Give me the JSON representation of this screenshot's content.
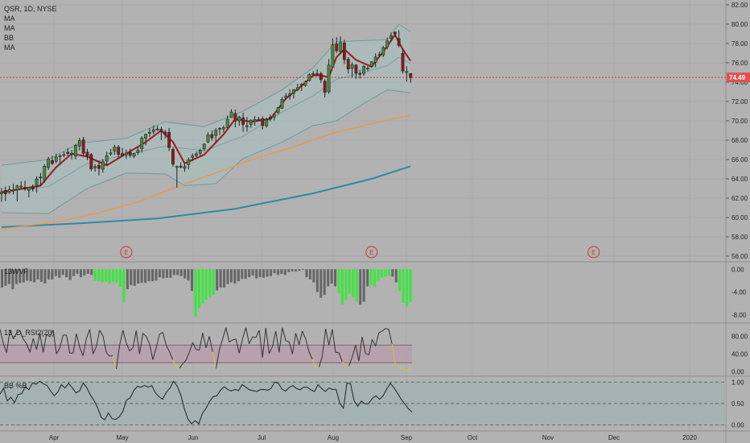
{
  "header": {
    "symbol_line": "QSR, 1D, NYSE",
    "indicator_labels": [
      "MA",
      "MA",
      "BB",
      "MA"
    ]
  },
  "colors": {
    "background": "#b2b2b2",
    "grid": "#a9a9a9",
    "candle_up": "#4a8f3a",
    "candle_down": "#8e1a1a",
    "ma_short": "#9a1d1d",
    "ma_mid": "#e89a4a",
    "ma_long": "#2b8ba6",
    "bb_band": "#6d9c9a",
    "bb_fill": "#a9bcbb",
    "price_line": "#d33a3a",
    "price_badge": "#e05050",
    "wvf_gray": "#666666",
    "wvf_green": "#38e83a",
    "rsi_line": "#333333",
    "rsi_low": "#e0c040",
    "rsi_band": "#b89aaa",
    "bbpct_fill": "#a2b3b2"
  },
  "price_panel": {
    "last_price": "74.49",
    "y_ticks": [
      "82.00",
      "80.00",
      "78.00",
      "76.00",
      "74.00",
      "72.00",
      "70.00",
      "68.00",
      "66.00",
      "64.00",
      "62.00",
      "60.00",
      "58.00",
      "56.00"
    ],
    "earnings_markers": [
      "E",
      "E",
      "E"
    ]
  },
  "panels": [
    {
      "label": "13WVF",
      "y_ticks": [
        "0.00",
        "-4.00",
        "-8.00"
      ]
    },
    {
      "label": "13_D_RSI2(20)",
      "y_ticks": [
        "80.00",
        "40.00",
        "0.00"
      ]
    },
    {
      "label": "BB %B",
      "y_ticks": [
        "1.00",
        "0.50",
        "0.00"
      ]
    }
  ],
  "time_axis": {
    "labels": [
      "Apr",
      "May",
      "Jun",
      "Jul",
      "Aug",
      "Sep",
      "Oct",
      "Nov",
      "Dec",
      "2020"
    ]
  },
  "chart_data": {
    "type": "candlestick",
    "title": "QSR, 1D, NYSE",
    "y_range": [
      55.5,
      82.5
    ],
    "x_range_days": [
      "2019-03-08",
      "2020-02-10"
    ],
    "candles": [
      [
        62.45,
        63.04,
        61.62,
        62.62
      ],
      [
        62.8,
        63.2,
        61.69,
        62.45
      ],
      [
        62.63,
        63.28,
        62.41,
        62.88
      ],
      [
        62.8,
        63.48,
        62.39,
        62.83
      ],
      [
        62.86,
        63.39,
        61.66,
        63.25
      ],
      [
        63.19,
        63.72,
        62.96,
        63.24
      ],
      [
        63.12,
        63.79,
        62.77,
        62.93
      ],
      [
        62.79,
        63.13,
        62.08,
        63.13
      ],
      [
        63.1,
        63.41,
        62.7,
        62.93
      ],
      [
        63.28,
        64.27,
        62.59,
        63.99
      ],
      [
        64.15,
        64.6,
        63.32,
        64.18
      ],
      [
        63.88,
        65.53,
        63.59,
        65.3
      ],
      [
        65.17,
        66.28,
        64.91,
        66.03
      ],
      [
        65.89,
        66.38,
        65.44,
        65.58
      ],
      [
        65.82,
        66.6,
        65.61,
        66.25
      ],
      [
        66.33,
        66.55,
        65.46,
        66.39
      ],
      [
        66.43,
        66.82,
        66.26,
        66.5
      ],
      [
        66.75,
        67.18,
        66.39,
        66.62
      ],
      [
        66.61,
        67.0,
        66.01,
        66.65
      ],
      [
        66.35,
        67.62,
        66.01,
        67.45
      ],
      [
        67.39,
        68.23,
        66.95,
        67.94
      ],
      [
        68.03,
        68.35,
        66.34,
        66.63
      ],
      [
        66.75,
        67.1,
        65.93,
        66.4
      ],
      [
        66.51,
        66.66,
        64.79,
        65.03
      ],
      [
        65.14,
        65.52,
        64.74,
        65.27
      ],
      [
        65.4,
        65.86,
        64.34,
        65.07
      ],
      [
        65.0,
        66.04,
        64.64,
        65.77
      ],
      [
        65.83,
        66.8,
        65.36,
        66.38
      ],
      [
        66.57,
        67.09,
        66.38,
        66.68
      ],
      [
        66.86,
        67.53,
        66.48,
        67.27
      ],
      [
        67.28,
        67.49,
        66.11,
        66.52
      ],
      [
        66.61,
        67.19,
        66.33,
        66.4
      ],
      [
        66.47,
        67.04,
        66.08,
        66.67
      ],
      [
        66.73,
        67.11,
        66.18,
        66.43
      ],
      [
        66.34,
        66.67,
        66.14,
        66.61
      ],
      [
        66.71,
        67.32,
        66.46,
        66.96
      ],
      [
        67.11,
        68.41,
        66.71,
        68.2
      ],
      [
        68.2,
        68.66,
        67.47,
        68.62
      ],
      [
        68.71,
        69.24,
        68.33,
        68.8
      ],
      [
        68.89,
        69.54,
        68.6,
        69.08
      ],
      [
        69.15,
        69.51,
        68.98,
        69.1
      ],
      [
        69.11,
        69.37,
        68.02,
        68.89
      ],
      [
        68.83,
        69.06,
        68.18,
        68.61
      ],
      [
        68.8,
        69.26,
        66.87,
        67.24
      ],
      [
        67.04,
        67.24,
        65.26,
        65.52
      ],
      [
        65.17,
        65.37,
        63.09,
        65.28
      ],
      [
        65.3,
        65.7,
        65.09,
        65.25
      ],
      [
        65.1,
        65.56,
        64.72,
        65.27
      ],
      [
        65.47,
        66.19,
        64.97,
        65.97
      ],
      [
        66.22,
        66.64,
        65.84,
        66.36
      ],
      [
        66.41,
        66.82,
        66.22,
        66.58
      ],
      [
        66.65,
        67.14,
        66.42,
        66.95
      ],
      [
        67.1,
        67.67,
        66.88,
        67.59
      ],
      [
        67.81,
        68.81,
        67.71,
        68.55
      ],
      [
        68.58,
        69.0,
        67.95,
        68.25
      ],
      [
        68.49,
        69.24,
        67.73,
        69.04
      ],
      [
        69.23,
        69.34,
        68.53,
        69.16
      ],
      [
        69.15,
        69.52,
        68.8,
        69.29
      ],
      [
        69.31,
        70.56,
        69.23,
        70.16
      ],
      [
        70.34,
        71.21,
        70.31,
        70.91
      ],
      [
        70.75,
        71.17,
        69.33,
        69.97
      ],
      [
        69.99,
        70.53,
        69.49,
        70.4
      ],
      [
        70.31,
        70.84,
        68.87,
        69.63
      ],
      [
        69.4,
        70.39,
        68.88,
        69.49
      ],
      [
        69.62,
        70.17,
        69.26,
        70.05
      ],
      [
        69.93,
        70.49,
        69.49,
        70.13
      ],
      [
        70.13,
        70.4,
        69.94,
        70.16
      ],
      [
        70.21,
        70.46,
        69.11,
        69.5
      ],
      [
        69.47,
        70.34,
        69.3,
        70.1
      ],
      [
        70.38,
        70.64,
        69.94,
        70.2
      ],
      [
        70.4,
        70.75,
        70.04,
        70.66
      ],
      [
        70.88,
        71.38,
        70.67,
        71.38
      ],
      [
        71.3,
        72.46,
        71.24,
        72.22
      ],
      [
        72.36,
        72.86,
        72.2,
        72.57
      ],
      [
        72.64,
        73.26,
        72.18,
        72.77
      ],
      [
        72.85,
        73.3,
        72.31,
        73.21
      ],
      [
        73.19,
        73.84,
        73.08,
        73.42
      ],
      [
        73.7,
        73.9,
        73.08,
        73.77
      ],
      [
        73.65,
        74.15,
        73.53,
        74.03
      ],
      [
        74.17,
        74.94,
        74.05,
        74.79
      ],
      [
        74.79,
        75.14,
        74.68,
        74.89
      ],
      [
        74.9,
        75.33,
        74.69,
        74.9
      ],
      [
        74.88,
        75.09,
        73.93,
        74.26
      ],
      [
        74.1,
        74.31,
        72.41,
        72.94
      ],
      [
        73.0,
        76.38,
        72.8,
        75.77
      ],
      [
        75.57,
        78.53,
        75.52,
        77.87
      ],
      [
        77.96,
        78.65,
        77.01,
        77.25
      ],
      [
        77.17,
        78.74,
        76.86,
        78.1
      ],
      [
        78.06,
        78.38,
        75.85,
        76.33
      ],
      [
        76.37,
        76.58,
        74.88,
        75.36
      ],
      [
        75.43,
        76.06,
        74.48,
        75.81
      ],
      [
        75.76,
        75.89,
        74.34,
        74.93
      ],
      [
        74.91,
        75.28,
        74.39,
        74.82
      ],
      [
        74.92,
        75.77,
        74.67,
        75.64
      ],
      [
        75.4,
        75.66,
        75.13,
        75.44
      ],
      [
        75.63,
        76.18,
        75.48,
        76.1
      ],
      [
        76.06,
        76.97,
        75.55,
        76.61
      ],
      [
        76.77,
        77.19,
        76.61,
        76.85
      ],
      [
        76.82,
        77.74,
        76.6,
        77.58
      ],
      [
        77.66,
        78.6,
        77.39,
        78.27
      ],
      [
        78.52,
        79.14,
        78.23,
        78.79
      ],
      [
        79.17,
        79.27,
        78.71,
        78.99
      ],
      [
        78.51,
        79.37,
        77.61,
        77.8
      ],
      [
        76.98,
        77.47,
        74.88,
        75.15
      ],
      [
        75.0,
        75.65,
        74.05,
        75.1
      ],
      [
        74.89,
        74.93,
        73.94,
        74.49
      ]
    ],
    "ma_short": [
      [
        0,
        62.6
      ],
      [
        10,
        63.3
      ],
      [
        14,
        65.2
      ],
      [
        18,
        66.6
      ],
      [
        22,
        66.3
      ],
      [
        27,
        65.4
      ],
      [
        32,
        66.6
      ],
      [
        37,
        67.8
      ],
      [
        41,
        69.0
      ],
      [
        44,
        67.8
      ],
      [
        47,
        65.6
      ],
      [
        52,
        66.5
      ],
      [
        57,
        68.6
      ],
      [
        60,
        70.2
      ],
      [
        64,
        69.9
      ],
      [
        69,
        70.2
      ],
      [
        73,
        72.3
      ],
      [
        77,
        73.6
      ],
      [
        80,
        74.7
      ],
      [
        82,
        74.7
      ],
      [
        84,
        74.5
      ],
      [
        86,
        76.6
      ],
      [
        88,
        77.4
      ],
      [
        91,
        76.3
      ],
      [
        95,
        75.6
      ],
      [
        99,
        77.7
      ],
      [
        101,
        78.9
      ],
      [
        103,
        77.4
      ],
      [
        105,
        76.2
      ]
    ],
    "ma_mid": [
      [
        0,
        58.8
      ],
      [
        15,
        59.6
      ],
      [
        25,
        60.5
      ],
      [
        35,
        61.6
      ],
      [
        45,
        63.2
      ],
      [
        55,
        64.6
      ],
      [
        65,
        66.1
      ],
      [
        75,
        67.3
      ],
      [
        85,
        68.7
      ],
      [
        95,
        69.7
      ],
      [
        105,
        70.6
      ]
    ],
    "ma_long": [
      [
        0,
        59.0
      ],
      [
        20,
        59.4
      ],
      [
        40,
        59.9
      ],
      [
        60,
        60.9
      ],
      [
        80,
        62.5
      ],
      [
        95,
        64.0
      ],
      [
        105,
        65.3
      ]
    ],
    "bb_upper": [
      [
        0,
        65.4
      ],
      [
        12,
        66.0
      ],
      [
        20,
        67.7
      ],
      [
        32,
        68.2
      ],
      [
        42,
        69.9
      ],
      [
        52,
        69.4
      ],
      [
        62,
        71.0
      ],
      [
        72,
        73.2
      ],
      [
        80,
        75.5
      ],
      [
        86,
        78.2
      ],
      [
        93,
        78.3
      ],
      [
        99,
        78.4
      ],
      [
        102,
        80.0
      ],
      [
        105,
        79.2
      ]
    ],
    "bb_lower": [
      [
        0,
        60.5
      ],
      [
        12,
        60.4
      ],
      [
        22,
        63.0
      ],
      [
        32,
        64.6
      ],
      [
        42,
        64.5
      ],
      [
        47,
        63.3
      ],
      [
        55,
        63.5
      ],
      [
        62,
        66.1
      ],
      [
        72,
        67.8
      ],
      [
        80,
        69.5
      ],
      [
        86,
        70.0
      ],
      [
        93,
        71.8
      ],
      [
        99,
        73.2
      ],
      [
        105,
        72.9
      ]
    ],
    "bb_middle": [
      [
        0,
        62.7
      ],
      [
        12,
        63.2
      ],
      [
        22,
        65.6
      ],
      [
        32,
        66.5
      ],
      [
        42,
        67.4
      ],
      [
        52,
        66.9
      ],
      [
        62,
        68.4
      ],
      [
        72,
        70.9
      ],
      [
        80,
        72.6
      ],
      [
        86,
        74.3
      ],
      [
        93,
        75.0
      ],
      [
        99,
        75.7
      ],
      [
        102,
        76.6
      ],
      [
        105,
        75.9
      ]
    ],
    "earnings_x": [
      32,
      95,
      152
    ],
    "wvf": {
      "range": [
        -9,
        0.6
      ],
      "values": [
        -3.2,
        -2.9,
        -2.6,
        -3.5,
        -2.6,
        -2.4,
        -2.3,
        -2.0,
        -2.1,
        -2.3,
        -1.8,
        -2.2,
        -2.5,
        -1.8,
        -1.8,
        -1.2,
        -1.5,
        -1.0,
        -1.4,
        -1.9,
        -1.2,
        -0.8,
        -1.4,
        -1.1,
        -0.8,
        -1.0,
        -2.0,
        -2.1,
        -2.3,
        -2.2,
        -2.5,
        -2.2,
        -2.4,
        -3.1,
        -5.7,
        -3.5,
        -2.8,
        -2.9,
        -2.5,
        -2.4,
        -2.4,
        -2.1,
        -2.1,
        -2.0,
        -1.4,
        -1.6,
        -1.5,
        -1.5,
        -1.0,
        -1.0,
        -1.2,
        -1.6,
        -2.0,
        -3.8,
        -8.3,
        -6.8,
        -6.0,
        -5.4,
        -4.9,
        -4.5,
        -3.7,
        -3.2,
        -3.2,
        -2.6,
        -2.3,
        -2.5,
        -2.1,
        -1.7,
        -1.7,
        -1.4,
        -1.1,
        -1.6,
        -1.4,
        -1.5,
        -1.3,
        -1.2,
        -0.7,
        -1.0,
        -0.8,
        -1.0,
        -0.5,
        -0.4,
        -0.4,
        -0.3,
        -0.1,
        -1.4,
        -1.8,
        -2.3,
        -4.0,
        -5.0,
        -4.5,
        -3.0,
        -2.5,
        -3.0,
        -4.2,
        -6.2,
        -5.4,
        -4.3,
        -4.9,
        -5.7,
        -6.2,
        -5.7,
        -3.0,
        -2.9,
        -3.1,
        -2.0,
        -1.5,
        -1.3,
        -1.1,
        -1.3,
        -2.3,
        -3.8,
        -5.9,
        -6.5,
        -5.8
      ],
      "green_from_index": [
        26,
        27,
        28,
        29,
        30,
        31,
        32,
        33,
        34,
        54,
        55,
        56,
        57,
        58,
        59,
        94,
        95,
        96,
        97,
        98,
        99,
        103,
        104,
        105,
        106,
        107,
        108,
        111,
        112,
        113,
        114
      ]
    },
    "rsi": {
      "range": [
        -5,
        105
      ],
      "band": [
        20,
        60
      ],
      "values": [
        96,
        64,
        43,
        94,
        74,
        88,
        93,
        74,
        63,
        44,
        75,
        50,
        86,
        44,
        85,
        79,
        94,
        40,
        54,
        83,
        83,
        42,
        42,
        86,
        55,
        36,
        75,
        96,
        40,
        57,
        94,
        81,
        43,
        35,
        36,
        6,
        60,
        94,
        65,
        47,
        54,
        93,
        40,
        87,
        80,
        63,
        27,
        54,
        85,
        89,
        60,
        45,
        27,
        9,
        7,
        18,
        26,
        44,
        66,
        50,
        49,
        88,
        54,
        80,
        45,
        7,
        49,
        74,
        100,
        67,
        72,
        74,
        42,
        75,
        100,
        63,
        79,
        77,
        94,
        32,
        99,
        41,
        57,
        92,
        44,
        100,
        70,
        68,
        40,
        87,
        61,
        92,
        74,
        45,
        28,
        11,
        10,
        35,
        97,
        60,
        96,
        44,
        43,
        22,
        14,
        12,
        33,
        60,
        24,
        79,
        41,
        38,
        73,
        58,
        88,
        92,
        98,
        96,
        62,
        17,
        10,
        6,
        4,
        3,
        5
      ]
    },
    "bb_pct": {
      "range": [
        -0.1,
        1.1
      ],
      "values": [
        0.72,
        0.86,
        0.56,
        0.65,
        0.52,
        0.71,
        0.73,
        0.89,
        0.82,
        0.98,
        0.95,
        1.02,
        0.96,
        0.92,
        0.79,
        0.68,
        0.77,
        0.94,
        0.86,
        0.97,
        0.87,
        0.75,
        0.79,
        0.98,
        0.87,
        0.7,
        0.57,
        0.4,
        0.18,
        0.12,
        0.28,
        0.15,
        0.13,
        0.19,
        0.32,
        0.58,
        0.63,
        0.8,
        0.9,
        0.88,
        0.92,
        0.88,
        0.92,
        0.75,
        0.66,
        0.6,
        0.76,
        0.86,
        1.02,
        0.91,
        0.7,
        0.38,
        0.14,
        0.03,
        0.1,
        0.03,
        0.27,
        0.39,
        0.55,
        0.66,
        0.68,
        0.81,
        0.89,
        0.83,
        0.79,
        0.83,
        0.8,
        0.94,
        0.88,
        0.82,
        0.8,
        0.78,
        0.82,
        0.83,
        0.81,
        0.85,
        1.0,
        0.97,
        0.84,
        0.79,
        0.87,
        0.92,
        0.85,
        0.82,
        0.88,
        0.88,
        0.82,
        0.78,
        0.94,
        0.85,
        0.78,
        0.86,
        0.83,
        0.83,
        0.51,
        0.39,
        0.98,
        0.96,
        0.56,
        0.44,
        0.56,
        0.49,
        0.5,
        0.62,
        0.68,
        0.6,
        0.68,
        0.84,
        0.97,
        0.87,
        0.74,
        0.6,
        0.49,
        0.38,
        0.3
      ]
    }
  }
}
